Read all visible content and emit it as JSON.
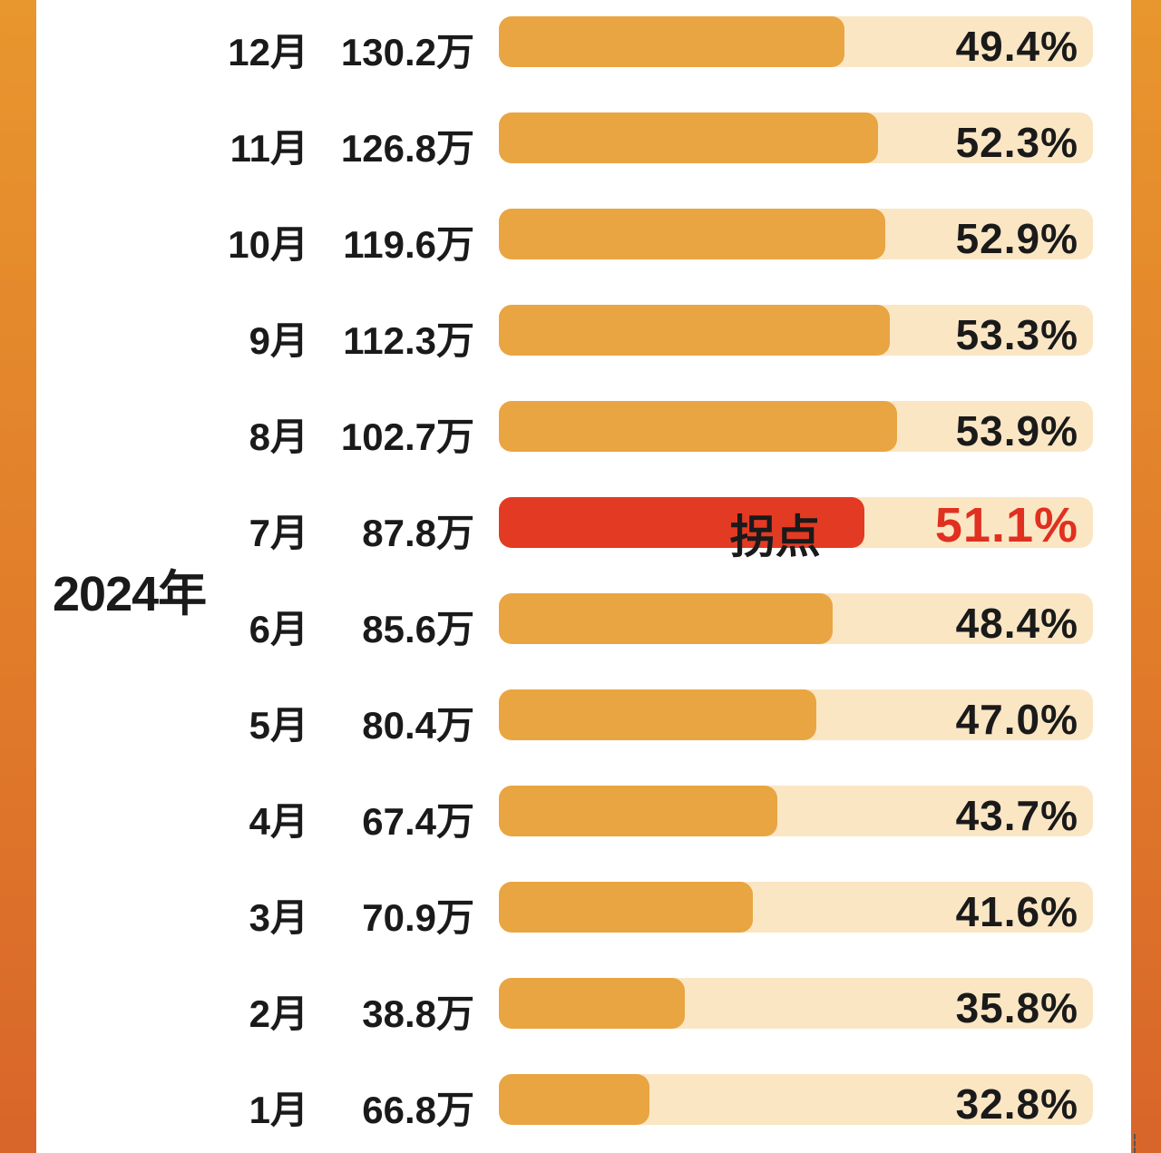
{
  "chart_data": {
    "type": "bar",
    "year_label": "2024年",
    "categories": [
      "12月",
      "11月",
      "10月",
      "9月",
      "8月",
      "7月",
      "6月",
      "5月",
      "4月",
      "3月",
      "2月",
      "1月"
    ],
    "value_labels": [
      "130.2万",
      "126.8万",
      "119.6万",
      "112.3万",
      "102.7万",
      "87.8万",
      "85.6万",
      "80.4万",
      "67.4万",
      "70.9万",
      "38.8万",
      "66.8万"
    ],
    "values": [
      49.4,
      52.3,
      52.9,
      53.3,
      53.9,
      51.1,
      48.4,
      47.0,
      43.7,
      41.6,
      35.8,
      32.8
    ],
    "percent_labels": [
      "49.4%",
      "52.3%",
      "52.9%",
      "53.3%",
      "53.9%",
      "51.1%",
      "48.4%",
      "47.0%",
      "43.7%",
      "41.6%",
      "35.8%",
      "32.8%"
    ],
    "highlight_index": 5,
    "highlight_label": "拐点",
    "colors": {
      "bar": "#e9a541",
      "track": "#fbe6c4",
      "highlight_bar": "#e33a24",
      "highlight_text": "#e03020"
    }
  }
}
